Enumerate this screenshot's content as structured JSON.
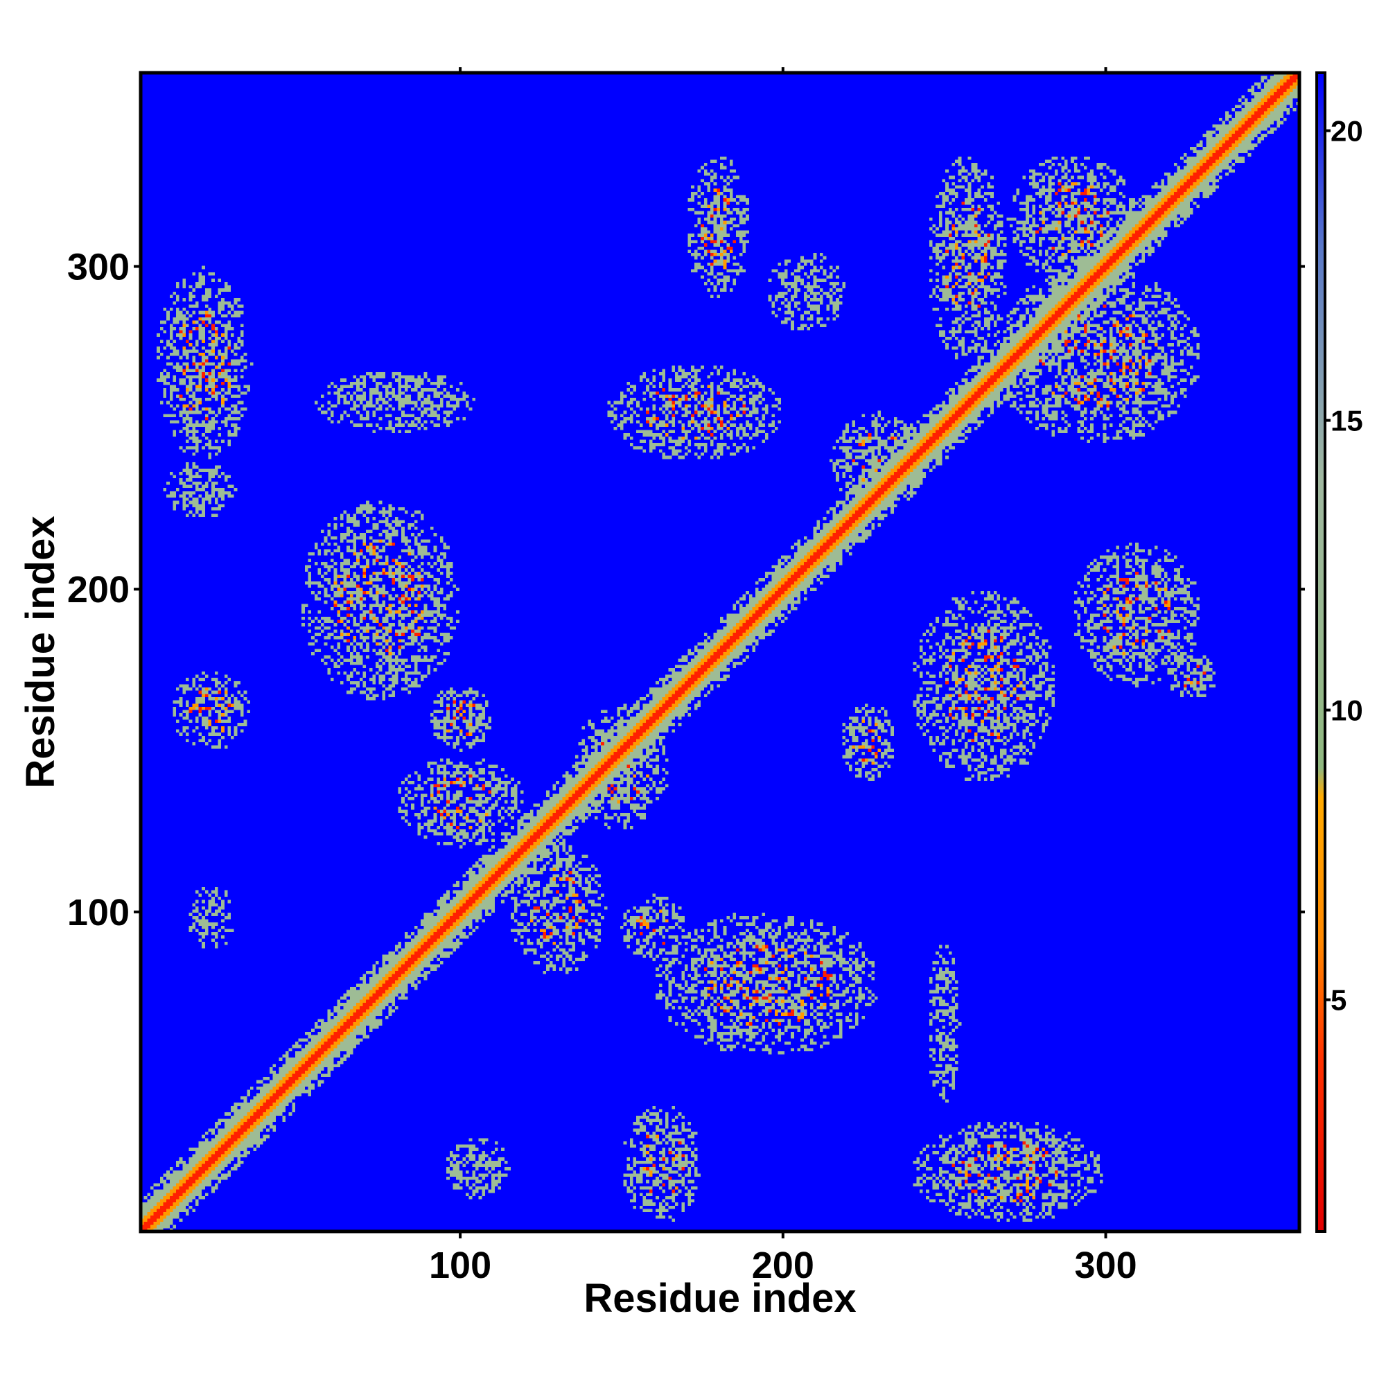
{
  "chart_data": {
    "type": "heatmap",
    "title": "",
    "xlabel": "Residue index",
    "ylabel": "Residue index",
    "xlim": [
      1,
      360
    ],
    "ylim": [
      1,
      360
    ],
    "x_ticks": [
      100,
      200,
      300
    ],
    "y_ticks": [
      100,
      200,
      300
    ],
    "colorbar": {
      "range": [
        1,
        21
      ],
      "ticks": [
        5,
        10,
        15,
        20
      ],
      "tick_labels": [
        "5",
        "10",
        "15",
        "20"
      ],
      "stops": [
        {
          "value": 1,
          "color": "#e00000"
        },
        {
          "value": 4,
          "color": "#ff3300"
        },
        {
          "value": 6,
          "color": "#ff8800"
        },
        {
          "value": 8.5,
          "color": "#ffaa00"
        },
        {
          "value": 9,
          "color": "#90b880"
        },
        {
          "value": 14,
          "color": "#a0b8a0"
        },
        {
          "value": 18,
          "color": "#5a78c8"
        },
        {
          "value": 21,
          "color": "#0000ff"
        }
      ]
    },
    "colors": {
      "background": "#0000ff",
      "near": "#ff2000",
      "mid": "#ff9900",
      "far": "#9ebc95"
    },
    "diagonal": {
      "from": 1,
      "to": 360,
      "value": 1
    },
    "contact_regions": [
      {
        "x": [
          5,
          35
        ],
        "y": [
          240,
          300
        ],
        "min_value": 5
      },
      {
        "x": [
          8,
          30
        ],
        "y": [
          222,
          240
        ],
        "min_value": 9
      },
      {
        "x": [
          10,
          35
        ],
        "y": [
          150,
          175
        ],
        "min_value": 5
      },
      {
        "x": [
          15,
          30
        ],
        "y": [
          88,
          108
        ],
        "min_value": 10
      },
      {
        "x": [
          50,
          100
        ],
        "y": [
          165,
          228
        ],
        "min_value": 5
      },
      {
        "x": [
          55,
          105
        ],
        "y": [
          248,
          268
        ],
        "min_value": 10
      },
      {
        "x": [
          80,
          120
        ],
        "y": [
          120,
          148
        ],
        "min_value": 5
      },
      {
        "x": [
          90,
          110
        ],
        "y": [
          150,
          170
        ],
        "min_value": 5
      },
      {
        "x": [
          95,
          115
        ],
        "y": [
          10,
          30
        ],
        "min_value": 10
      },
      {
        "x": [
          115,
          145
        ],
        "y": [
          80,
          122
        ],
        "min_value": 5
      },
      {
        "x": [
          135,
          165
        ],
        "y": [
          125,
          165
        ],
        "min_value": 5
      },
      {
        "x": [
          150,
          170
        ],
        "y": [
          85,
          105
        ],
        "min_value": 5
      },
      {
        "x": [
          150,
          175
        ],
        "y": [
          3,
          40
        ],
        "min_value": 5
      },
      {
        "x": [
          160,
          230
        ],
        "y": [
          55,
          100
        ],
        "min_value": 5
      },
      {
        "x": [
          145,
          200
        ],
        "y": [
          240,
          270
        ],
        "min_value": 5
      },
      {
        "x": [
          170,
          190
        ],
        "y": [
          290,
          335
        ],
        "min_value": 5
      },
      {
        "x": [
          195,
          220
        ],
        "y": [
          280,
          305
        ],
        "min_value": 10
      },
      {
        "x": [
          215,
          245
        ],
        "y": [
          225,
          255
        ],
        "min_value": 5
      },
      {
        "x": [
          218,
          235
        ],
        "y": [
          140,
          165
        ],
        "min_value": 5
      },
      {
        "x": [
          240,
          300
        ],
        "y": [
          3,
          35
        ],
        "min_value": 5
      },
      {
        "x": [
          240,
          285
        ],
        "y": [
          140,
          200
        ],
        "min_value": 5
      },
      {
        "x": [
          245,
          270
        ],
        "y": [
          270,
          335
        ],
        "min_value": 5
      },
      {
        "x": [
          270,
          310
        ],
        "y": [
          295,
          335
        ],
        "min_value": 5
      },
      {
        "x": [
          265,
          330
        ],
        "y": [
          245,
          300
        ],
        "min_value": 5
      },
      {
        "x": [
          290,
          330
        ],
        "y": [
          170,
          215
        ],
        "min_value": 5
      },
      {
        "x": [
          320,
          335
        ],
        "y": [
          165,
          180
        ],
        "min_value": 5
      },
      {
        "x": [
          245,
          255
        ],
        "y": [
          40,
          90
        ],
        "min_value": 10
      }
    ]
  }
}
